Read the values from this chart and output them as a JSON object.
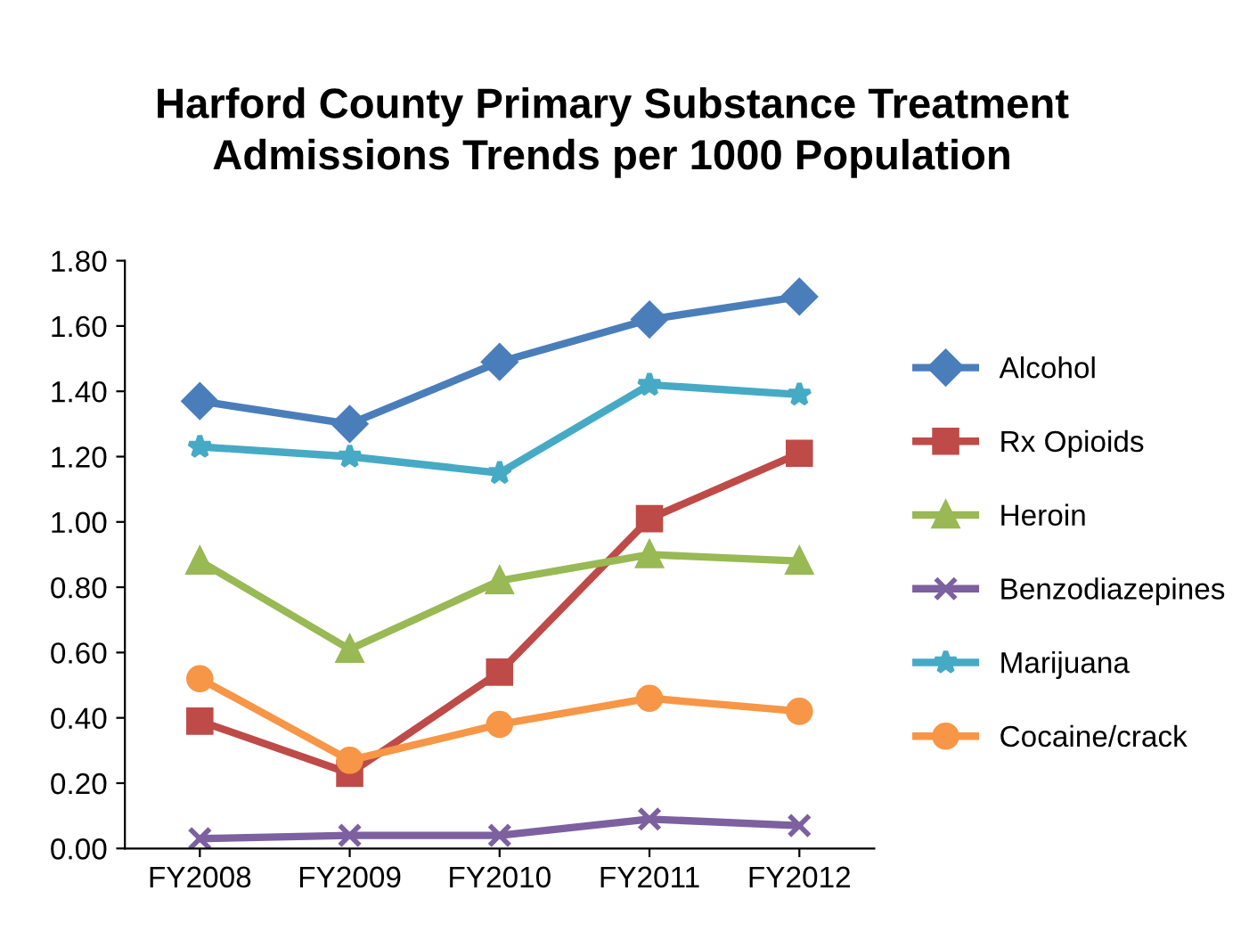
{
  "chart_data": {
    "type": "line",
    "title": "Harford County Primary Substance Treatment\nAdmissions Trends per 1000 Population",
    "categories": [
      "FY2008",
      "FY2009",
      "FY2010",
      "FY2011",
      "FY2012"
    ],
    "series": [
      {
        "name": "Alcohol",
        "color": "#4a7ebb",
        "marker": "diamond",
        "values": [
          1.37,
          1.3,
          1.49,
          1.62,
          1.69
        ]
      },
      {
        "name": "Rx Opioids",
        "color": "#be4b48",
        "marker": "square",
        "values": [
          0.39,
          0.23,
          0.54,
          1.01,
          1.21
        ]
      },
      {
        "name": "Heroin",
        "color": "#98b954",
        "marker": "triangle",
        "values": [
          0.88,
          0.61,
          0.82,
          0.9,
          0.88
        ]
      },
      {
        "name": "Benzodiazepines",
        "color": "#7d60a0",
        "marker": "cross",
        "values": [
          0.03,
          0.04,
          0.04,
          0.09,
          0.07
        ]
      },
      {
        "name": "Marijuana",
        "color": "#46aac5",
        "marker": "star",
        "values": [
          1.23,
          1.2,
          1.15,
          1.42,
          1.39
        ]
      },
      {
        "name": "Cocaine/crack",
        "color": "#f79646",
        "marker": "circle",
        "values": [
          0.52,
          0.27,
          0.38,
          0.46,
          0.42
        ]
      }
    ],
    "ylim": [
      0,
      1.8
    ],
    "yticks": [
      {
        "value": 0,
        "label": "0.00"
      },
      {
        "value": 0.2,
        "label": "0.20"
      },
      {
        "value": 0.4,
        "label": "0.40"
      },
      {
        "value": 0.6,
        "label": "0.60"
      },
      {
        "value": 0.8,
        "label": "0.80"
      },
      {
        "value": 1.0,
        "label": "1.00"
      },
      {
        "value": 1.2,
        "label": "1.20"
      },
      {
        "value": 1.4,
        "label": "1.40"
      },
      {
        "value": 1.6,
        "label": "1.60"
      },
      {
        "value": 1.8,
        "label": "1.80"
      }
    ],
    "legend": "right"
  }
}
